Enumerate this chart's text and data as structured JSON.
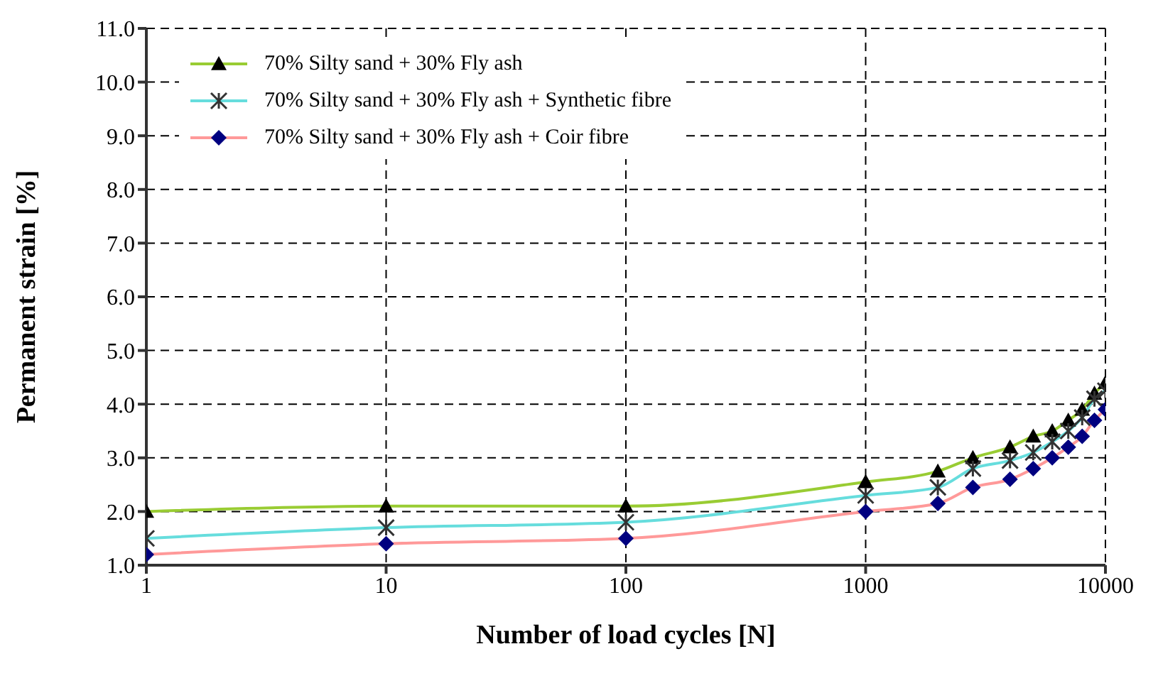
{
  "chart_data": {
    "type": "line",
    "xlabel": "Number of load cycles [N]",
    "ylabel": "Permanent strain [%]",
    "x": [
      1,
      10,
      100,
      1000,
      2000,
      2800,
      4000,
      5000,
      6000,
      7000,
      8000,
      9000,
      10000
    ],
    "log": "x",
    "xlim": [
      1,
      10000
    ],
    "xticks": [
      1,
      10,
      100,
      1000,
      10000
    ],
    "ylim": [
      1,
      11
    ],
    "yticks": [
      {
        "value": 1,
        "label": "1.0"
      },
      {
        "value": 2,
        "label": "2.0"
      },
      {
        "value": 3,
        "label": "3.0"
      },
      {
        "value": 4,
        "label": "4.0"
      },
      {
        "value": 5,
        "label": "5.0"
      },
      {
        "value": 6,
        "label": "6.0"
      },
      {
        "value": 7,
        "label": "7.0"
      },
      {
        "value": 8,
        "label": "8.0"
      },
      {
        "value": 9,
        "label": "9.0"
      },
      {
        "value": 10,
        "label": "10.0"
      },
      {
        "value": 11,
        "label": "11.0"
      }
    ],
    "grid": true,
    "legend": "top left",
    "line_style": "solid",
    "series": [
      {
        "name": "70% Silty sand + 30% Fly ash",
        "color": "#99cc33",
        "marker": "triangle",
        "colors": [
          "#000000",
          "#000000",
          "#000000",
          "#000000",
          "#000000",
          "#000000",
          "#000000",
          "#000000",
          "#000000",
          "#000000",
          "#000000",
          "#000000",
          "#000000"
        ],
        "values": [
          2.0,
          2.1,
          2.1,
          2.55,
          2.75,
          3.0,
          3.2,
          3.4,
          3.5,
          3.7,
          3.9,
          4.2,
          4.4
        ]
      },
      {
        "name": "70% Silty sand + 30% Fly ash + Synthetic fibre",
        "color": "#66dddd",
        "marker": "cross",
        "colors": [
          "#333333",
          "#333333",
          "#333333",
          "#333333",
          "#333333",
          "#333333",
          "#333333",
          "#333333",
          "#333333",
          "#333333",
          "#333333",
          "#333333",
          "#333333"
        ],
        "values": [
          1.5,
          1.7,
          1.8,
          2.3,
          2.45,
          2.8,
          2.95,
          3.1,
          3.3,
          3.5,
          3.75,
          4.1,
          4.25
        ]
      },
      {
        "name": "70% Silty sand + 30% Fly ash + Coir fibre",
        "color": "#ff9999",
        "marker": "diamond",
        "colors": [
          "#000080",
          "#000080",
          "#000080",
          "#000080",
          "#000080",
          "#000080",
          "#000080",
          "#000080",
          "#000080",
          "#000080",
          "#000080",
          "#000080",
          "#000080"
        ],
        "values": [
          1.2,
          1.4,
          1.5,
          2.0,
          2.15,
          2.45,
          2.6,
          2.8,
          3.0,
          3.2,
          3.4,
          3.7,
          3.9
        ]
      }
    ]
  }
}
